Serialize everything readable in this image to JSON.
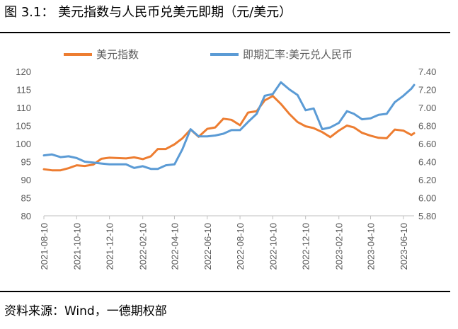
{
  "figure": {
    "title": "图 3.1：  美元指数与人民币兑美元即期（元/美元）",
    "source": "资料来源：Wind，一德期权部"
  },
  "chart_data": {
    "type": "line",
    "title": "",
    "x_ticks": [
      "2021-08-10",
      "2021-10-10",
      "2021-12-10",
      "2022-02-10",
      "2022-04-10",
      "2022-06-10",
      "2022-08-10",
      "2022-10-10",
      "2022-12-10",
      "2023-02-10",
      "2023-04-10",
      "2023-06-10"
    ],
    "x_range": [
      "2021-08-10",
      "2023-06-30"
    ],
    "y_left": {
      "ticks": [
        "80",
        "85",
        "90",
        "95",
        "100",
        "105",
        "110",
        "115",
        "120"
      ],
      "min": 80,
      "max": 120
    },
    "y_right": {
      "ticks": [
        "5.80",
        "6.00",
        "6.20",
        "6.40",
        "6.60",
        "6.80",
        "7.00",
        "7.20",
        "7.40"
      ],
      "min": 5.8,
      "max": 7.4
    },
    "grid": false,
    "legend_position": "top",
    "series": [
      {
        "name": "美元指数",
        "axis": "left",
        "color": "#ED7D31",
        "points": [
          [
            "2021-08-10",
            92.9
          ],
          [
            "2021-08-25",
            92.6
          ],
          [
            "2021-09-10",
            92.6
          ],
          [
            "2021-09-25",
            93.2
          ],
          [
            "2021-10-10",
            94.0
          ],
          [
            "2021-10-25",
            93.8
          ],
          [
            "2021-11-10",
            94.2
          ],
          [
            "2021-11-25",
            95.8
          ],
          [
            "2021-12-10",
            96.1
          ],
          [
            "2021-12-25",
            96.0
          ],
          [
            "2022-01-10",
            95.9
          ],
          [
            "2022-01-25",
            96.2
          ],
          [
            "2022-02-10",
            95.7
          ],
          [
            "2022-02-25",
            96.5
          ],
          [
            "2022-03-10",
            98.5
          ],
          [
            "2022-03-25",
            98.5
          ],
          [
            "2022-04-10",
            99.8
          ],
          [
            "2022-04-25",
            101.5
          ],
          [
            "2022-05-10",
            103.9
          ],
          [
            "2022-05-25",
            101.9
          ],
          [
            "2022-06-10",
            104.1
          ],
          [
            "2022-06-25",
            104.5
          ],
          [
            "2022-07-10",
            106.9
          ],
          [
            "2022-07-25",
            106.6
          ],
          [
            "2022-08-10",
            105.1
          ],
          [
            "2022-08-25",
            108.6
          ],
          [
            "2022-09-10",
            109.0
          ],
          [
            "2022-09-25",
            112.0
          ],
          [
            "2022-10-10",
            113.2
          ],
          [
            "2022-10-25",
            111.0
          ],
          [
            "2022-11-10",
            108.2
          ],
          [
            "2022-11-25",
            106.0
          ],
          [
            "2022-12-10",
            104.8
          ],
          [
            "2022-12-25",
            104.3
          ],
          [
            "2023-01-10",
            103.2
          ],
          [
            "2023-01-25",
            101.8
          ],
          [
            "2023-02-10",
            103.6
          ],
          [
            "2023-02-25",
            105.0
          ],
          [
            "2023-03-10",
            104.5
          ],
          [
            "2023-03-25",
            103.0
          ],
          [
            "2023-04-10",
            102.2
          ],
          [
            "2023-04-25",
            101.6
          ],
          [
            "2023-05-10",
            101.5
          ],
          [
            "2023-05-25",
            103.9
          ],
          [
            "2023-06-10",
            103.6
          ],
          [
            "2023-06-25",
            102.4
          ],
          [
            "2023-06-30",
            102.9
          ]
        ]
      },
      {
        "name": "即期汇率:美元兑人民币",
        "axis": "right",
        "color": "#5B9BD5",
        "points": [
          [
            "2021-08-10",
            6.47
          ],
          [
            "2021-08-25",
            6.48
          ],
          [
            "2021-09-10",
            6.45
          ],
          [
            "2021-09-25",
            6.46
          ],
          [
            "2021-10-10",
            6.44
          ],
          [
            "2021-10-25",
            6.4
          ],
          [
            "2021-11-10",
            6.39
          ],
          [
            "2021-11-25",
            6.38
          ],
          [
            "2021-12-10",
            6.37
          ],
          [
            "2021-12-25",
            6.37
          ],
          [
            "2022-01-10",
            6.37
          ],
          [
            "2022-01-25",
            6.33
          ],
          [
            "2022-02-10",
            6.35
          ],
          [
            "2022-02-25",
            6.32
          ],
          [
            "2022-03-10",
            6.32
          ],
          [
            "2022-03-25",
            6.36
          ],
          [
            "2022-04-10",
            6.37
          ],
          [
            "2022-04-25",
            6.54
          ],
          [
            "2022-05-10",
            6.76
          ],
          [
            "2022-05-25",
            6.68
          ],
          [
            "2022-06-10",
            6.68
          ],
          [
            "2022-06-25",
            6.69
          ],
          [
            "2022-07-10",
            6.71
          ],
          [
            "2022-07-25",
            6.75
          ],
          [
            "2022-08-10",
            6.75
          ],
          [
            "2022-08-25",
            6.84
          ],
          [
            "2022-09-10",
            6.93
          ],
          [
            "2022-09-25",
            7.13
          ],
          [
            "2022-10-10",
            7.15
          ],
          [
            "2022-10-25",
            7.28
          ],
          [
            "2022-11-10",
            7.2
          ],
          [
            "2022-11-25",
            7.14
          ],
          [
            "2022-12-10",
            6.97
          ],
          [
            "2022-12-25",
            6.99
          ],
          [
            "2023-01-10",
            6.76
          ],
          [
            "2023-01-25",
            6.78
          ],
          [
            "2023-02-10",
            6.83
          ],
          [
            "2023-02-25",
            6.96
          ],
          [
            "2023-03-10",
            6.93
          ],
          [
            "2023-03-25",
            6.87
          ],
          [
            "2023-04-10",
            6.88
          ],
          [
            "2023-04-25",
            6.92
          ],
          [
            "2023-05-10",
            6.93
          ],
          [
            "2023-05-25",
            7.06
          ],
          [
            "2023-06-10",
            7.13
          ],
          [
            "2023-06-25",
            7.21
          ],
          [
            "2023-06-30",
            7.25
          ]
        ]
      }
    ]
  }
}
